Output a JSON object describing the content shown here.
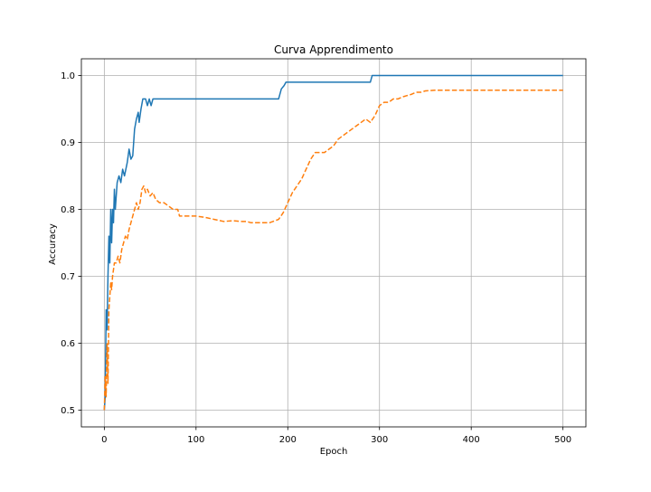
{
  "chart_data": {
    "type": "line",
    "title": "Curva Apprendimento",
    "xlabel": "Epoch",
    "ylabel": "Accuracy",
    "xlim": [
      -25,
      525
    ],
    "ylim": [
      0.475,
      1.025
    ],
    "xticks": [
      0,
      100,
      200,
      300,
      400,
      500
    ],
    "yticks": [
      0.5,
      0.6,
      0.7,
      0.8,
      0.9,
      1.0
    ],
    "grid": true,
    "series": [
      {
        "color": "#1f77b4",
        "style": "solid",
        "points": [
          [
            0,
            0.5
          ],
          [
            1,
            0.52
          ],
          [
            2,
            0.65
          ],
          [
            3,
            0.62
          ],
          [
            4,
            0.7
          ],
          [
            5,
            0.76
          ],
          [
            6,
            0.72
          ],
          [
            7,
            0.8
          ],
          [
            8,
            0.75
          ],
          [
            9,
            0.8
          ],
          [
            10,
            0.78
          ],
          [
            11,
            0.83
          ],
          [
            12,
            0.8
          ],
          [
            14,
            0.84
          ],
          [
            16,
            0.85
          ],
          [
            18,
            0.84
          ],
          [
            20,
            0.86
          ],
          [
            22,
            0.85
          ],
          [
            25,
            0.87
          ],
          [
            27,
            0.89
          ],
          [
            29,
            0.875
          ],
          [
            31,
            0.88
          ],
          [
            33,
            0.92
          ],
          [
            35,
            0.935
          ],
          [
            37,
            0.945
          ],
          [
            38,
            0.93
          ],
          [
            40,
            0.95
          ],
          [
            42,
            0.965
          ],
          [
            45,
            0.965
          ],
          [
            47,
            0.955
          ],
          [
            49,
            0.965
          ],
          [
            51,
            0.955
          ],
          [
            53,
            0.965
          ],
          [
            60,
            0.965
          ],
          [
            100,
            0.965
          ],
          [
            150,
            0.965
          ],
          [
            190,
            0.965
          ],
          [
            193,
            0.98
          ],
          [
            196,
            0.985
          ],
          [
            198,
            0.99
          ],
          [
            230,
            0.99
          ],
          [
            290,
            0.99
          ],
          [
            292,
            1.0
          ],
          [
            350,
            1.0
          ],
          [
            400,
            1.0
          ],
          [
            500,
            1.0
          ]
        ]
      },
      {
        "color": "#ff7f0e",
        "style": "dashed",
        "points": [
          [
            0,
            0.5
          ],
          [
            1,
            0.55
          ],
          [
            2,
            0.52
          ],
          [
            3,
            0.6
          ],
          [
            4,
            0.54
          ],
          [
            5,
            0.65
          ],
          [
            6,
            0.67
          ],
          [
            7,
            0.69
          ],
          [
            8,
            0.68
          ],
          [
            9,
            0.7
          ],
          [
            10,
            0.71
          ],
          [
            11,
            0.72
          ],
          [
            13,
            0.72
          ],
          [
            15,
            0.73
          ],
          [
            17,
            0.72
          ],
          [
            19,
            0.74
          ],
          [
            21,
            0.75
          ],
          [
            23,
            0.76
          ],
          [
            25,
            0.755
          ],
          [
            27,
            0.77
          ],
          [
            29,
            0.78
          ],
          [
            31,
            0.79
          ],
          [
            33,
            0.8
          ],
          [
            35,
            0.81
          ],
          [
            37,
            0.8
          ],
          [
            39,
            0.81
          ],
          [
            41,
            0.83
          ],
          [
            43,
            0.835
          ],
          [
            45,
            0.825
          ],
          [
            47,
            0.83
          ],
          [
            50,
            0.82
          ],
          [
            53,
            0.825
          ],
          [
            56,
            0.815
          ],
          [
            60,
            0.81
          ],
          [
            65,
            0.81
          ],
          [
            70,
            0.805
          ],
          [
            75,
            0.8
          ],
          [
            80,
            0.8
          ],
          [
            82,
            0.79
          ],
          [
            90,
            0.79
          ],
          [
            100,
            0.79
          ],
          [
            110,
            0.788
          ],
          [
            120,
            0.785
          ],
          [
            130,
            0.782
          ],
          [
            140,
            0.783
          ],
          [
            150,
            0.782
          ],
          [
            155,
            0.782
          ],
          [
            160,
            0.78
          ],
          [
            170,
            0.78
          ],
          [
            180,
            0.78
          ],
          [
            190,
            0.785
          ],
          [
            195,
            0.795
          ],
          [
            200,
            0.81
          ],
          [
            205,
            0.825
          ],
          [
            210,
            0.835
          ],
          [
            215,
            0.845
          ],
          [
            220,
            0.86
          ],
          [
            225,
            0.875
          ],
          [
            230,
            0.885
          ],
          [
            235,
            0.885
          ],
          [
            240,
            0.885
          ],
          [
            245,
            0.89
          ],
          [
            250,
            0.895
          ],
          [
            255,
            0.905
          ],
          [
            260,
            0.91
          ],
          [
            265,
            0.915
          ],
          [
            270,
            0.92
          ],
          [
            275,
            0.925
          ],
          [
            280,
            0.93
          ],
          [
            285,
            0.935
          ],
          [
            290,
            0.93
          ],
          [
            295,
            0.94
          ],
          [
            300,
            0.955
          ],
          [
            305,
            0.96
          ],
          [
            310,
            0.96
          ],
          [
            315,
            0.965
          ],
          [
            320,
            0.965
          ],
          [
            325,
            0.968
          ],
          [
            330,
            0.97
          ],
          [
            335,
            0.972
          ],
          [
            340,
            0.975
          ],
          [
            345,
            0.975
          ],
          [
            350,
            0.977
          ],
          [
            360,
            0.978
          ],
          [
            400,
            0.978
          ],
          [
            450,
            0.978
          ],
          [
            500,
            0.978
          ]
        ]
      }
    ]
  }
}
